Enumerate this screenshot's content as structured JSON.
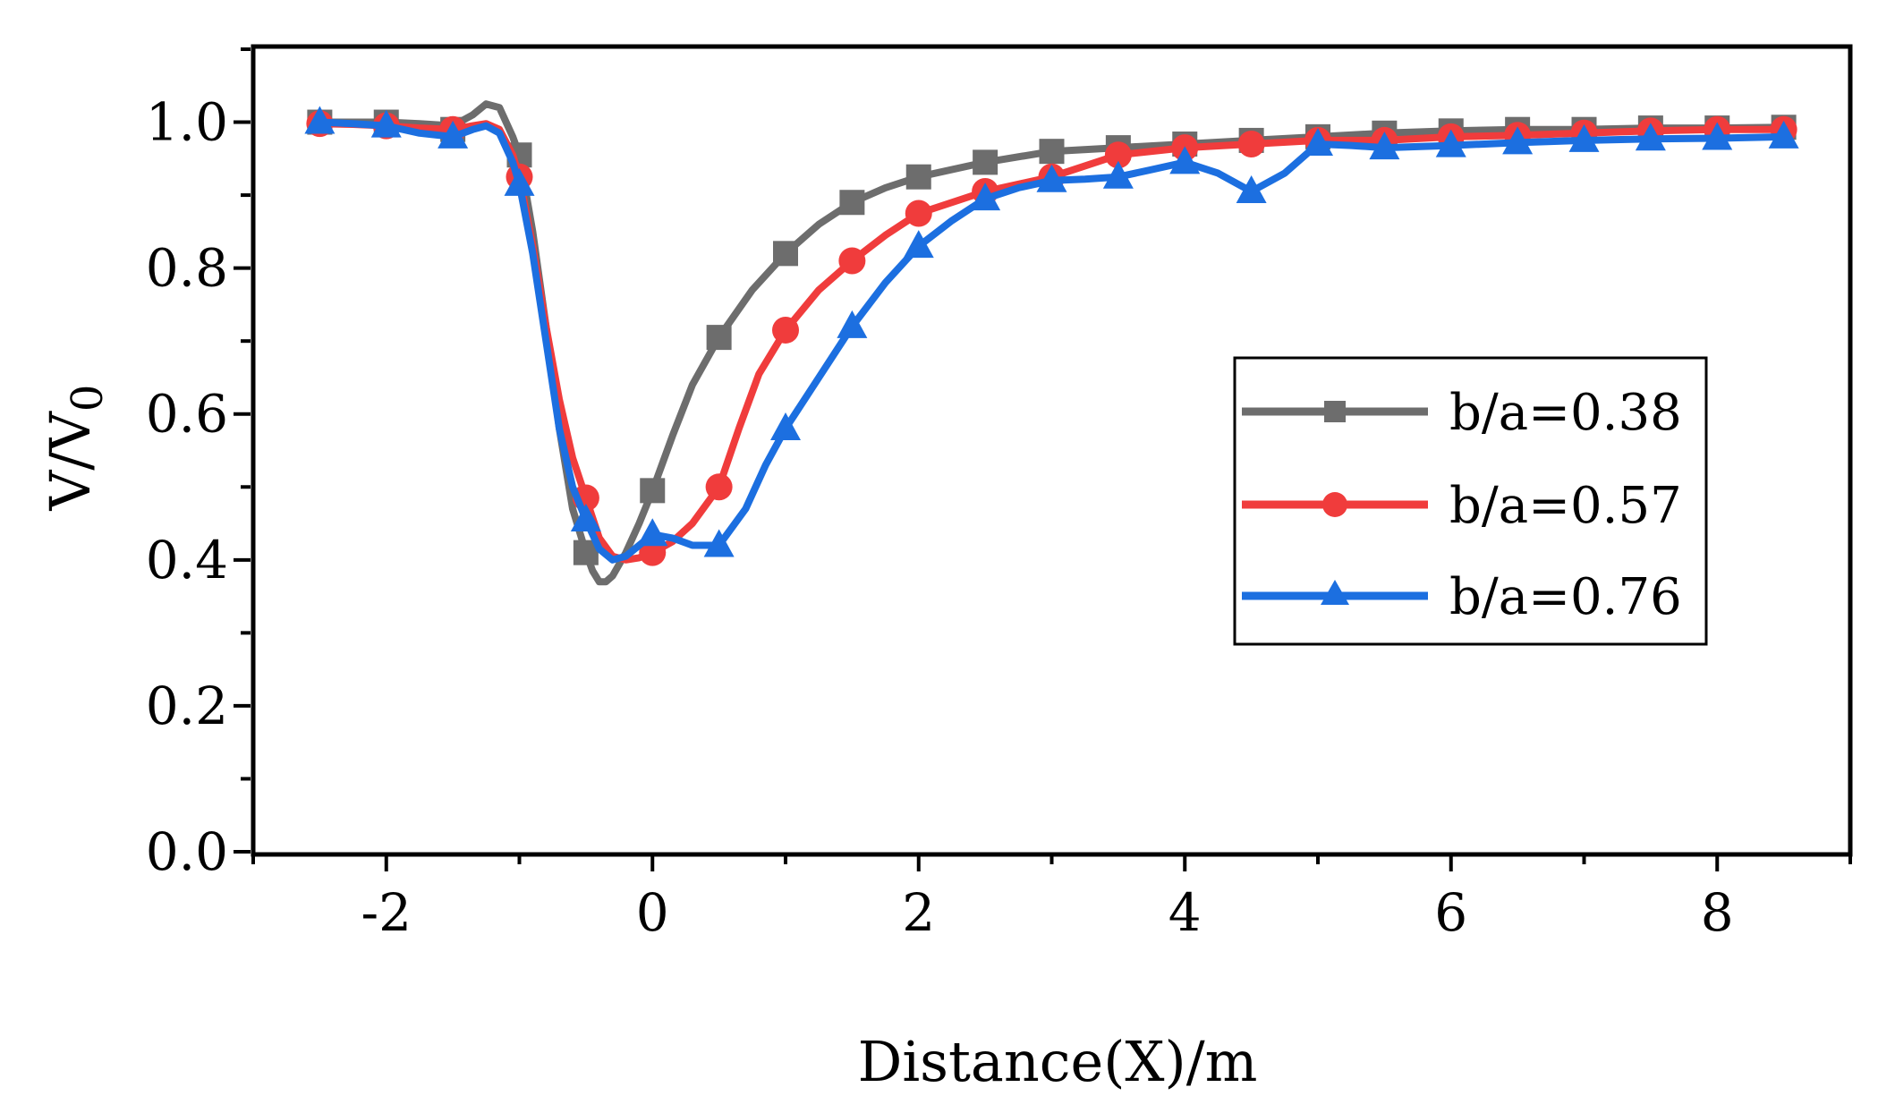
{
  "chart_data": {
    "type": "line",
    "title": "",
    "xlabel": "Distance(X)/m",
    "ylabel_main": "V/V",
    "ylabel_sub": "0",
    "xlim": [
      -3,
      9
    ],
    "ylim": [
      0,
      1.1
    ],
    "xticks": [
      -2,
      0,
      2,
      4,
      6,
      8
    ],
    "xtick_labels": [
      "-2",
      "0",
      "2",
      "4",
      "6",
      "8"
    ],
    "yticks": [
      0,
      0.2,
      0.4,
      0.6,
      0.8,
      1.0
    ],
    "ytick_labels": [
      "0.0",
      "0.2",
      "0.4",
      "0.6",
      "0.8",
      "1.0"
    ],
    "legend_position": "center-right",
    "grid": false,
    "series": [
      {
        "name": "b/a=0.38",
        "color": "#6d6d6d",
        "marker": "square",
        "x": [
          -2.5,
          -2,
          -1.5,
          -1,
          -0.5,
          0,
          0.5,
          1,
          1.5,
          2,
          2.5,
          3,
          3.5,
          4,
          4.5,
          5,
          5.5,
          6,
          6.5,
          7,
          7.5,
          8,
          8.5
        ],
        "values": [
          1.0,
          1.0,
          0.99,
          0.955,
          0.41,
          0.495,
          0.705,
          0.82,
          0.89,
          0.925,
          0.945,
          0.96,
          0.965,
          0.97,
          0.975,
          0.98,
          0.985,
          0.988,
          0.99,
          0.99,
          0.992,
          0.992,
          0.993
        ],
        "curve_x": [
          -2.5,
          -2.25,
          -2,
          -1.75,
          -1.5,
          -1.35,
          -1.25,
          -1.15,
          -1.05,
          -1,
          -0.9,
          -0.8,
          -0.7,
          -0.6,
          -0.5,
          -0.45,
          -0.4,
          -0.35,
          -0.3,
          -0.2,
          -0.1,
          0,
          0.15,
          0.3,
          0.5,
          0.75,
          1,
          1.25,
          1.5,
          1.75,
          2,
          2.5,
          3,
          3.5,
          4,
          4.5,
          5,
          5.5,
          6,
          6.5,
          7,
          7.5,
          8,
          8.5
        ],
        "curve_y": [
          1.0,
          1.0,
          1.0,
          0.998,
          0.995,
          1.01,
          1.025,
          1.02,
          0.98,
          0.955,
          0.85,
          0.72,
          0.58,
          0.47,
          0.41,
          0.385,
          0.37,
          0.37,
          0.378,
          0.41,
          0.45,
          0.495,
          0.57,
          0.64,
          0.705,
          0.77,
          0.82,
          0.86,
          0.89,
          0.91,
          0.925,
          0.945,
          0.96,
          0.965,
          0.97,
          0.975,
          0.98,
          0.985,
          0.988,
          0.99,
          0.99,
          0.992,
          0.992,
          0.993
        ]
      },
      {
        "name": "b/a=0.57",
        "color": "#f03c3c",
        "marker": "circle",
        "x": [
          -2.5,
          -2,
          -1.5,
          -1,
          -0.5,
          0,
          0.5,
          1,
          1.5,
          2,
          2.5,
          3,
          3.5,
          4,
          4.5,
          5,
          5.5,
          6,
          6.5,
          7,
          7.5,
          8,
          8.5
        ],
        "values": [
          0.998,
          0.995,
          0.99,
          0.925,
          0.485,
          0.41,
          0.5,
          0.715,
          0.81,
          0.875,
          0.905,
          0.925,
          0.955,
          0.965,
          0.97,
          0.975,
          0.975,
          0.98,
          0.982,
          0.985,
          0.988,
          0.99,
          0.99
        ],
        "curve_x": [
          -2.5,
          -2.25,
          -2,
          -1.75,
          -1.5,
          -1.35,
          -1.25,
          -1.15,
          -1.05,
          -1,
          -0.9,
          -0.8,
          -0.7,
          -0.6,
          -0.5,
          -0.4,
          -0.3,
          -0.2,
          -0.1,
          0,
          0.15,
          0.3,
          0.5,
          0.65,
          0.8,
          1,
          1.25,
          1.5,
          1.75,
          2,
          2.5,
          3,
          3.5,
          4,
          4.5,
          5,
          5.5,
          6,
          6.5,
          7,
          7.5,
          8,
          8.5
        ],
        "curve_y": [
          0.998,
          0.997,
          0.995,
          0.992,
          0.99,
          0.995,
          0.998,
          0.99,
          0.955,
          0.925,
          0.83,
          0.72,
          0.62,
          0.54,
          0.485,
          0.43,
          0.405,
          0.4,
          0.403,
          0.41,
          0.425,
          0.45,
          0.5,
          0.58,
          0.655,
          0.715,
          0.77,
          0.81,
          0.845,
          0.875,
          0.905,
          0.925,
          0.955,
          0.965,
          0.97,
          0.975,
          0.975,
          0.98,
          0.982,
          0.985,
          0.988,
          0.99,
          0.99
        ]
      },
      {
        "name": "b/a=0.76",
        "color": "#1c6fe0",
        "marker": "triangle",
        "x": [
          -2.5,
          -2,
          -1.5,
          -1,
          -0.5,
          0,
          0.5,
          1,
          1.5,
          2,
          2.5,
          3,
          3.5,
          4,
          4.5,
          5,
          5.5,
          6,
          6.5,
          7,
          7.5,
          8,
          8.5
        ],
        "values": [
          1.0,
          0.995,
          0.98,
          0.915,
          0.455,
          0.435,
          0.42,
          0.58,
          0.72,
          0.83,
          0.895,
          0.92,
          0.925,
          0.945,
          0.905,
          0.97,
          0.965,
          0.968,
          0.972,
          0.975,
          0.977,
          0.978,
          0.98
        ],
        "curve_x": [
          -2.5,
          -2.25,
          -2,
          -1.75,
          -1.5,
          -1.35,
          -1.25,
          -1.15,
          -1.05,
          -1,
          -0.9,
          -0.8,
          -0.7,
          -0.6,
          -0.5,
          -0.4,
          -0.3,
          -0.2,
          -0.1,
          0,
          0.15,
          0.3,
          0.5,
          0.7,
          0.85,
          1,
          1.25,
          1.5,
          1.75,
          2,
          2.25,
          2.5,
          2.75,
          3,
          3.25,
          3.5,
          3.75,
          4,
          4.25,
          4.5,
          4.75,
          5,
          5.25,
          5.5,
          6,
          6.5,
          7,
          7.5,
          8,
          8.5
        ],
        "curve_y": [
          1.0,
          0.998,
          0.995,
          0.985,
          0.98,
          0.99,
          0.995,
          0.985,
          0.945,
          0.915,
          0.82,
          0.7,
          0.58,
          0.5,
          0.455,
          0.415,
          0.4,
          0.405,
          0.42,
          0.435,
          0.43,
          0.42,
          0.42,
          0.47,
          0.53,
          0.58,
          0.65,
          0.72,
          0.78,
          0.83,
          0.865,
          0.895,
          0.91,
          0.92,
          0.922,
          0.925,
          0.935,
          0.945,
          0.93,
          0.905,
          0.93,
          0.97,
          0.968,
          0.965,
          0.968,
          0.972,
          0.975,
          0.977,
          0.978,
          0.98
        ]
      }
    ]
  }
}
